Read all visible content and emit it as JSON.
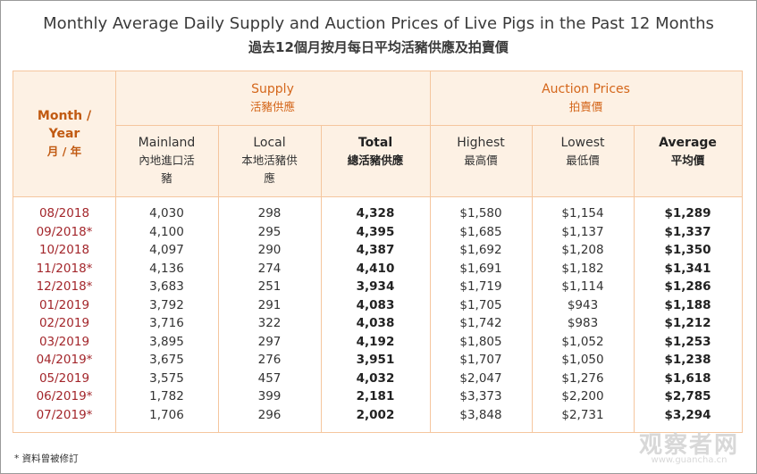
{
  "title": "Monthly Average Daily Supply and Auction Prices of Live Pigs in the Past 12 Months",
  "subtitle": "過去12個月按月每日平均活豬供應及拍賣價",
  "header": {
    "month_year_en": "Month /",
    "month_year_en2": "Year",
    "month_year_zh": "月 / 年",
    "supply_en": "Supply",
    "supply_zh": "活豬供應",
    "prices_en": "Auction Prices",
    "prices_zh": "拍賣價",
    "mainland_en": "Mainland",
    "mainland_zh1": "內地進口活",
    "mainland_zh2": "豬",
    "local_en": "Local",
    "local_zh1": "本地活豬供",
    "local_zh2": "應",
    "total_en": "Total",
    "total_zh": "總活豬供應",
    "highest_en": "Highest",
    "highest_zh": "最高價",
    "lowest_en": "Lowest",
    "lowest_zh": "最低價",
    "average_en": "Average",
    "average_zh": "平均價"
  },
  "rows": [
    {
      "month": "08/2018",
      "mainland": "4,030",
      "local": "298",
      "total": "4,328",
      "highest": "$1,580",
      "lowest": "$1,154",
      "average": "$1,289"
    },
    {
      "month": "09/2018*",
      "mainland": "4,100",
      "local": "295",
      "total": "4,395",
      "highest": "$1,685",
      "lowest": "$1,137",
      "average": "$1,337"
    },
    {
      "month": "10/2018",
      "mainland": "4,097",
      "local": "290",
      "total": "4,387",
      "highest": "$1,692",
      "lowest": "$1,208",
      "average": "$1,350"
    },
    {
      "month": "11/2018*",
      "mainland": "4,136",
      "local": "274",
      "total": "4,410",
      "highest": "$1,691",
      "lowest": "$1,182",
      "average": "$1,341"
    },
    {
      "month": "12/2018*",
      "mainland": "3,683",
      "local": "251",
      "total": "3,934",
      "highest": "$1,719",
      "lowest": "$1,114",
      "average": "$1,286"
    },
    {
      "month": "01/2019",
      "mainland": "3,792",
      "local": "291",
      "total": "4,083",
      "highest": "$1,705",
      "lowest": "$943",
      "average": "$1,188"
    },
    {
      "month": "02/2019",
      "mainland": "3,716",
      "local": "322",
      "total": "4,038",
      "highest": "$1,742",
      "lowest": "$983",
      "average": "$1,212"
    },
    {
      "month": "03/2019",
      "mainland": "3,895",
      "local": "297",
      "total": "4,192",
      "highest": "$1,805",
      "lowest": "$1,052",
      "average": "$1,253"
    },
    {
      "month": "04/2019*",
      "mainland": "3,675",
      "local": "276",
      "total": "3,951",
      "highest": "$1,707",
      "lowest": "$1,050",
      "average": "$1,238"
    },
    {
      "month": "05/2019",
      "mainland": "3,575",
      "local": "457",
      "total": "4,032",
      "highest": "$2,047",
      "lowest": "$1,276",
      "average": "$1,618"
    },
    {
      "month": "06/2019*",
      "mainland": "1,782",
      "local": "399",
      "total": "2,181",
      "highest": "$3,373",
      "lowest": "$2,200",
      "average": "$2,785"
    },
    {
      "month": "07/2019*",
      "mainland": "1,706",
      "local": "296",
      "total": "2,002",
      "highest": "$3,848",
      "lowest": "$2,731",
      "average": "$3,294"
    }
  ],
  "footnote": "* 資料曾被修訂",
  "watermark": "观察者网",
  "watermark_url": "www.guancha.cn"
}
